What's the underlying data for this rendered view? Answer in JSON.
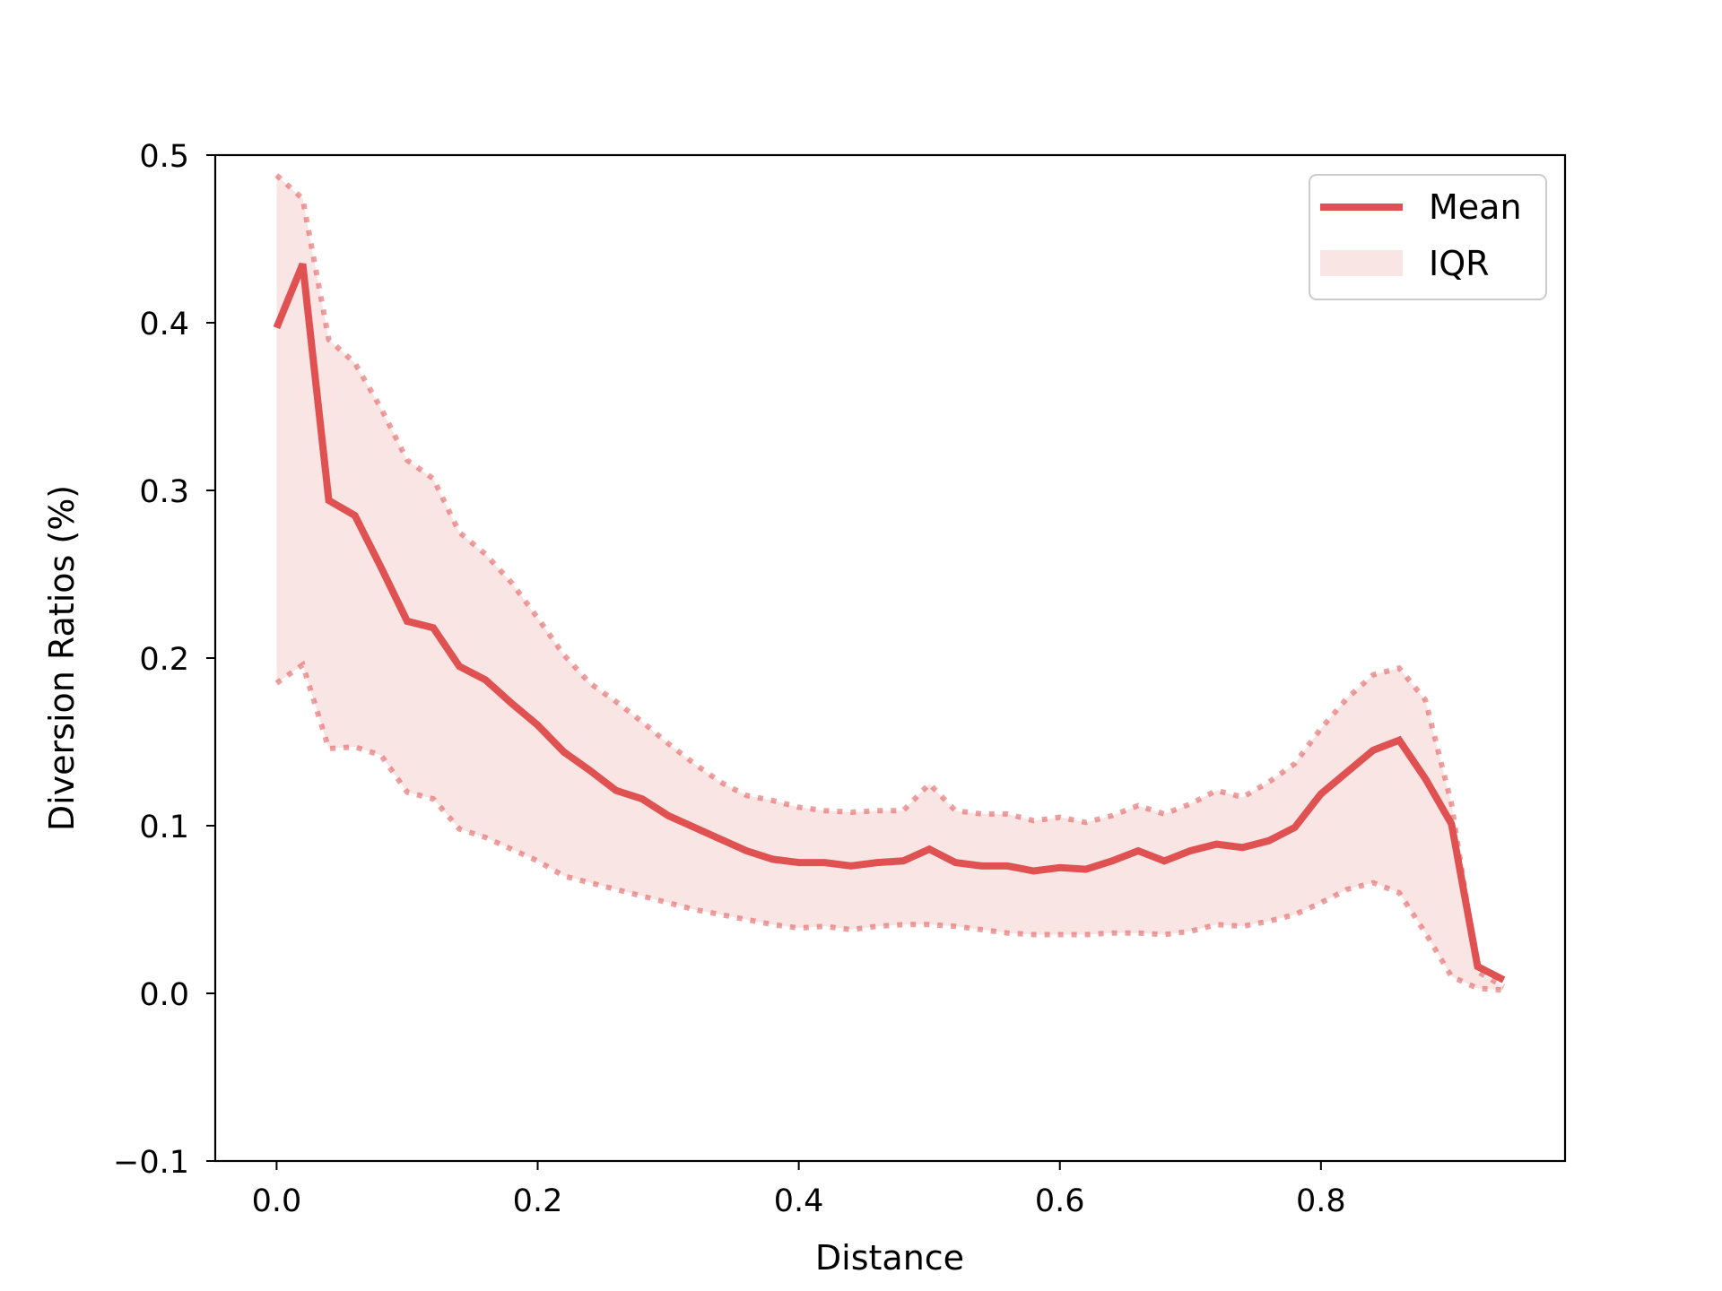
{
  "chart_data": {
    "type": "line",
    "title": "",
    "xlabel": "Distance",
    "ylabel": "Diversion Ratios (%)",
    "xlim": [
      -0.047,
      0.987
    ],
    "ylim": [
      -0.1,
      0.5
    ],
    "xticks": [
      0.0,
      0.2,
      0.4,
      0.6,
      0.8
    ],
    "xtick_labels": [
      "0.0",
      "0.2",
      "0.4",
      "0.6",
      "0.8"
    ],
    "yticks": [
      -0.1,
      0.0,
      0.1,
      0.2,
      0.3,
      0.4,
      0.5
    ],
    "ytick_labels": [
      "−0.1",
      "0.0",
      "0.1",
      "0.2",
      "0.3",
      "0.4",
      "0.5"
    ],
    "grid": false,
    "legend_position": "top-right",
    "x": [
      0.0,
      0.02,
      0.04,
      0.06,
      0.08,
      0.1,
      0.12,
      0.14,
      0.16,
      0.18,
      0.2,
      0.22,
      0.24,
      0.26,
      0.28,
      0.3,
      0.32,
      0.34,
      0.36,
      0.38,
      0.4,
      0.42,
      0.44,
      0.46,
      0.48,
      0.5,
      0.52,
      0.54,
      0.56,
      0.58,
      0.6,
      0.62,
      0.64,
      0.66,
      0.68,
      0.7,
      0.72,
      0.74,
      0.76,
      0.78,
      0.8,
      0.82,
      0.84,
      0.86,
      0.88,
      0.9,
      0.92,
      0.94
    ],
    "series": [
      {
        "name": "Mean",
        "color": "#e05252",
        "style": "solid",
        "values": [
          0.397,
          0.435,
          0.294,
          0.285,
          0.254,
          0.222,
          0.218,
          0.195,
          0.187,
          0.173,
          0.16,
          0.144,
          0.133,
          0.121,
          0.116,
          0.106,
          0.099,
          0.092,
          0.085,
          0.08,
          0.078,
          0.078,
          0.076,
          0.078,
          0.079,
          0.086,
          0.078,
          0.076,
          0.076,
          0.073,
          0.075,
          0.074,
          0.079,
          0.085,
          0.079,
          0.085,
          0.089,
          0.087,
          0.091,
          0.099,
          0.119,
          0.132,
          0.145,
          0.151,
          0.128,
          0.101,
          0.016,
          0.008
        ]
      }
    ],
    "band": {
      "name": "IQR",
      "color": "#e05252",
      "fill_opacity": 0.15,
      "upper": [
        0.488,
        0.474,
        0.39,
        0.376,
        0.349,
        0.318,
        0.307,
        0.275,
        0.262,
        0.245,
        0.224,
        0.202,
        0.185,
        0.174,
        0.162,
        0.149,
        0.137,
        0.126,
        0.118,
        0.115,
        0.111,
        0.109,
        0.108,
        0.109,
        0.109,
        0.125,
        0.109,
        0.107,
        0.107,
        0.103,
        0.105,
        0.102,
        0.106,
        0.112,
        0.107,
        0.113,
        0.121,
        0.117,
        0.126,
        0.137,
        0.158,
        0.176,
        0.19,
        0.194,
        0.175,
        0.113,
        0.013,
        0.004
      ],
      "lower": [
        0.185,
        0.196,
        0.146,
        0.147,
        0.142,
        0.12,
        0.116,
        0.098,
        0.093,
        0.086,
        0.079,
        0.07,
        0.066,
        0.062,
        0.058,
        0.054,
        0.05,
        0.047,
        0.044,
        0.041,
        0.039,
        0.04,
        0.038,
        0.04,
        0.041,
        0.041,
        0.04,
        0.038,
        0.036,
        0.035,
        0.035,
        0.035,
        0.036,
        0.036,
        0.035,
        0.037,
        0.041,
        0.04,
        0.043,
        0.047,
        0.054,
        0.062,
        0.066,
        0.06,
        0.036,
        0.01,
        0.003,
        0.002
      ]
    }
  }
}
